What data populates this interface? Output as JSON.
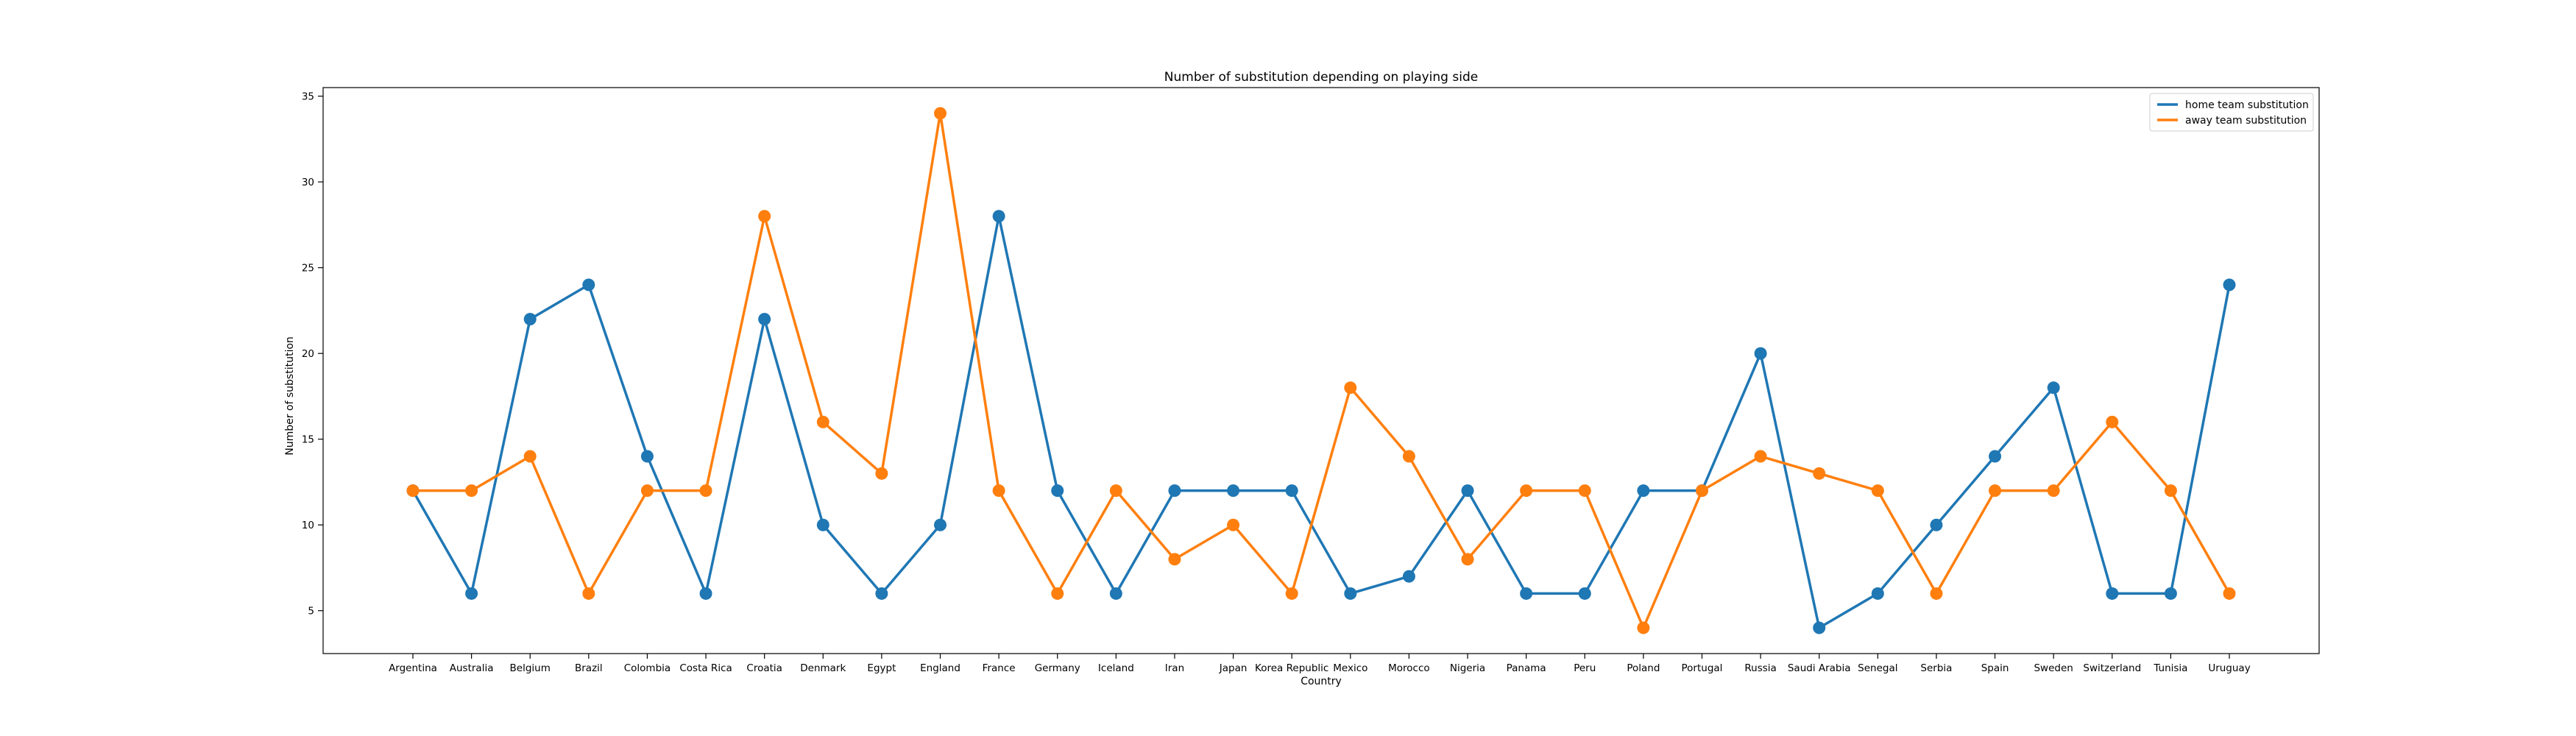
{
  "chart_data": {
    "type": "line",
    "title": "Number of substitution depending on playing side",
    "xlabel": "Country",
    "ylabel": "Number of substitution",
    "categories": [
      "Argentina",
      "Australia",
      "Belgium",
      "Brazil",
      "Colombia",
      "Costa Rica",
      "Croatia",
      "Denmark",
      "Egypt",
      "England",
      "France",
      "Germany",
      "Iceland",
      "Iran",
      "Japan",
      "Korea Republic",
      "Mexico",
      "Morocco",
      "Nigeria",
      "Panama",
      "Peru",
      "Poland",
      "Portugal",
      "Russia",
      "Saudi Arabia",
      "Senegal",
      "Serbia",
      "Spain",
      "Sweden",
      "Switzerland",
      "Tunisia",
      "Uruguay"
    ],
    "series": [
      {
        "name": "home team substitution",
        "color": "#1f77b4",
        "values": [
          12,
          6,
          22,
          24,
          14,
          6,
          22,
          10,
          6,
          10,
          28,
          12,
          6,
          12,
          12,
          12,
          6,
          7,
          12,
          6,
          6,
          12,
          12,
          20,
          4,
          6,
          10,
          14,
          18,
          6,
          6,
          24
        ]
      },
      {
        "name": "away team substitution",
        "color": "#ff7f0e",
        "values": [
          12,
          12,
          14,
          6,
          12,
          12,
          28,
          16,
          13,
          34,
          12,
          6,
          12,
          8,
          10,
          6,
          18,
          14,
          8,
          12,
          12,
          4,
          12,
          14,
          13,
          12,
          6,
          12,
          12,
          16,
          12,
          6
        ]
      }
    ],
    "ylim": [
      2.5,
      35.5
    ],
    "yticks": [
      5,
      10,
      15,
      20,
      25,
      30,
      35
    ],
    "grid": false,
    "legend_position": "top-right"
  }
}
